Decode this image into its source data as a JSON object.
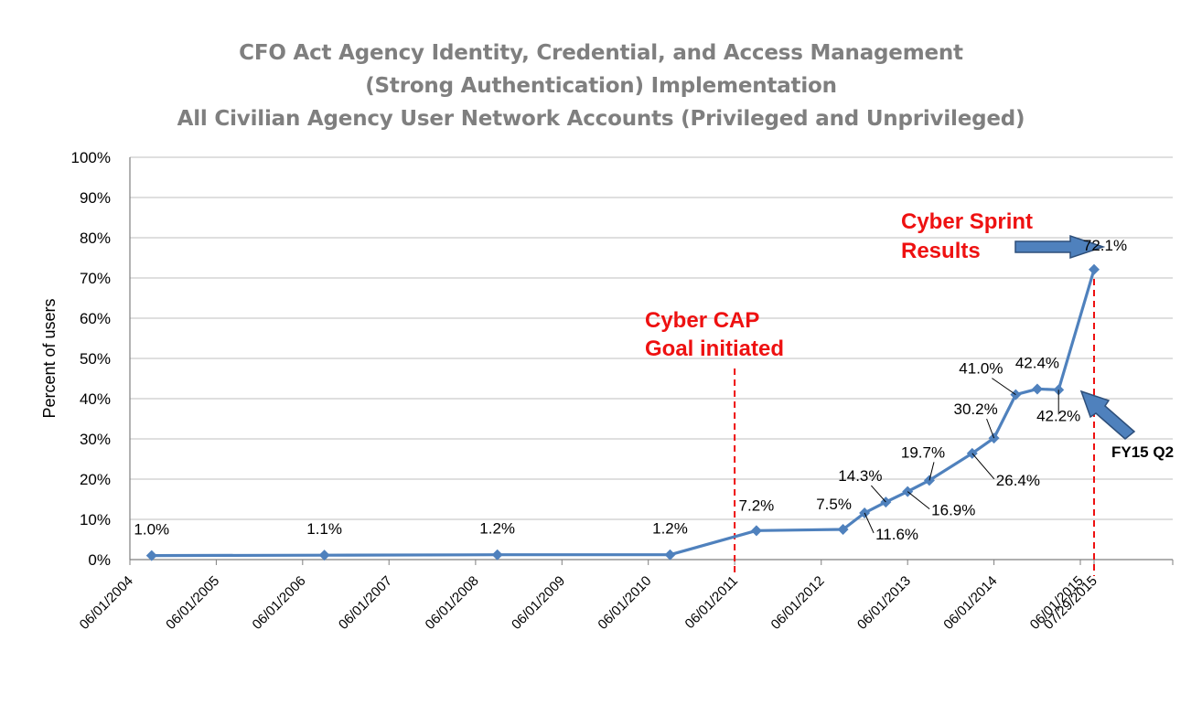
{
  "chart_data": {
    "type": "line",
    "title": [
      "CFO Act Agency Identity, Credential, and Access Management",
      "(Strong Authentication) Implementation",
      "All Civilian Agency User Network Accounts (Privileged and Unprivileged)"
    ],
    "xlabel": "",
    "ylabel": "Percent of users",
    "x_ticks": [
      "06/01/2004",
      "06/01/2005",
      "06/01/2006",
      "06/01/2007",
      "06/01/2008",
      "06/01/2009",
      "06/01/2010",
      "06/01/2011",
      "06/01/2012",
      "06/01/2013",
      "06/01/2014",
      "06/01/2015",
      "07/29/2015"
    ],
    "y_ticks": [
      "0%",
      "10%",
      "20%",
      "30%",
      "40%",
      "50%",
      "60%",
      "70%",
      "80%",
      "90%",
      "100%"
    ],
    "ylim": [
      0,
      100
    ],
    "grid": "horizontal",
    "series_color": "#4f81bd",
    "series": [
      {
        "points": [
          {
            "date": "2004-09-01",
            "value": 1.0,
            "label": "1.0%"
          },
          {
            "date": "2006-09-01",
            "value": 1.1,
            "label": "1.1%"
          },
          {
            "date": "2008-09-01",
            "value": 1.2,
            "label": "1.2%"
          },
          {
            "date": "2010-09-01",
            "value": 1.2,
            "label": "1.2%"
          },
          {
            "date": "2011-09-01",
            "value": 7.2,
            "label": "7.2%"
          },
          {
            "date": "2012-09-01",
            "value": 7.5,
            "label": "7.5%"
          },
          {
            "date": "2012-12-01",
            "value": 11.6,
            "label": "11.6%"
          },
          {
            "date": "2013-03-01",
            "value": 14.3,
            "label": "14.3%"
          },
          {
            "date": "2013-06-01",
            "value": 16.9,
            "label": "16.9%"
          },
          {
            "date": "2013-09-01",
            "value": 19.7,
            "label": "19.7%"
          },
          {
            "date": "2014-03-01",
            "value": 26.4,
            "label": "26.4%"
          },
          {
            "date": "2014-06-01",
            "value": 30.2,
            "label": "30.2%"
          },
          {
            "date": "2014-09-01",
            "value": 41.0,
            "label": "41.0%"
          },
          {
            "date": "2014-12-01",
            "value": 42.4,
            "label": "42.4%"
          },
          {
            "date": "2015-03-01",
            "value": 42.2,
            "label": "42.2%"
          },
          {
            "date": "2015-07-29",
            "value": 72.1,
            "label": "72.1%"
          }
        ]
      }
    ],
    "annotations": {
      "cap_line1": "Cyber CAP",
      "cap_line2": "Goal initiated",
      "cap_date": "2011-06-01",
      "sprint_line1": "Cyber Sprint",
      "sprint_line2": "Results",
      "sprint_date": "2015-07-29",
      "fy15": "FY15 Q2",
      "annotation_color": "#ee1111"
    }
  }
}
